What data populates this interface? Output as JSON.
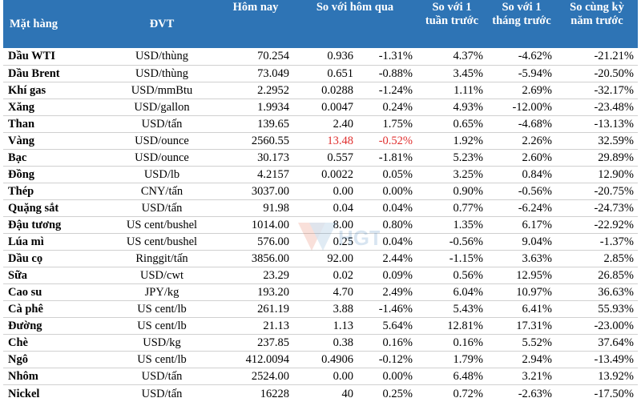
{
  "header": {
    "commodity": "Mặt hàng",
    "unit": "ĐVT",
    "today": "Hôm nay",
    "vs_yesterday": "So với hôm qua",
    "vs_week": "So với 1 tuần trước",
    "vs_month": "So với 1 tháng trước",
    "vs_year": "So cùng kỳ năm trước"
  },
  "colors": {
    "header_bg": "#2e74b5",
    "negative_highlight": "#e0302f"
  },
  "rows": [
    {
      "name": "Dầu WTI",
      "unit": "USD/thùng",
      "today": "70.254",
      "chg": "0.936",
      "chg_pct": "-1.31%",
      "week": "4.37%",
      "month": "-4.62%",
      "year": "-21.21%"
    },
    {
      "name": "Dầu Brent",
      "unit": "USD/thùng",
      "today": "73.049",
      "chg": "0.651",
      "chg_pct": "-0.88%",
      "week": "3.45%",
      "month": "-5.94%",
      "year": "-20.50%"
    },
    {
      "name": "Khí gas",
      "unit": "USD/mmBtu",
      "today": "2.2952",
      "chg": "0.0288",
      "chg_pct": "-1.24%",
      "week": "1.11%",
      "month": "2.69%",
      "year": "-32.17%"
    },
    {
      "name": "Xăng",
      "unit": "USD/gallon",
      "today": "1.9934",
      "chg": "0.0047",
      "chg_pct": "0.24%",
      "week": "4.93%",
      "month": "-12.00%",
      "year": "-23.48%"
    },
    {
      "name": "Than",
      "unit": "USD/tấn",
      "today": "139.65",
      "chg": "2.40",
      "chg_pct": "1.75%",
      "week": "0.65%",
      "month": "-4.68%",
      "year": "-13.13%"
    },
    {
      "name": "Vàng",
      "unit": "USD/ounce",
      "today": "2560.55",
      "chg": "13.48",
      "chg_pct": "-0.52%",
      "week": "1.92%",
      "month": "2.26%",
      "year": "32.59%"
    },
    {
      "name": "Bạc",
      "unit": "USD/ounce",
      "today": "30.173",
      "chg": "0.557",
      "chg_pct": "-1.81%",
      "week": "5.23%",
      "month": "2.60%",
      "year": "29.89%"
    },
    {
      "name": "Đồng",
      "unit": "USD/lb",
      "today": "4.2157",
      "chg": "0.0022",
      "chg_pct": "0.05%",
      "week": "3.25%",
      "month": "0.84%",
      "year": "12.90%"
    },
    {
      "name": "Thép",
      "unit": "CNY/tấn",
      "today": "3037.00",
      "chg": "0.00",
      "chg_pct": "0.00%",
      "week": "0.90%",
      "month": "-0.56%",
      "year": "-20.75%"
    },
    {
      "name": "Quặng sắt",
      "unit": "USD/tấn",
      "today": "91.98",
      "chg": "0.04",
      "chg_pct": "0.04%",
      "week": "0.77%",
      "month": "-6.24%",
      "year": "-24.73%"
    },
    {
      "name": "Đậu tương",
      "unit": "US cent/bushel",
      "today": "1014.00",
      "chg": "8.00",
      "chg_pct": "0.80%",
      "week": "1.35%",
      "month": "6.17%",
      "year": "-22.92%"
    },
    {
      "name": "Lúa mì",
      "unit": "US cent/bushel",
      "today": "576.00",
      "chg": "0.25",
      "chg_pct": "0.04%",
      "week": "-0.56%",
      "month": "9.04%",
      "year": "-1.37%"
    },
    {
      "name": "Dầu cọ",
      "unit": "Ringgit/tấn",
      "today": "3856.00",
      "chg": "92.00",
      "chg_pct": "2.44%",
      "week": "-1.15%",
      "month": "3.63%",
      "year": "2.85%"
    },
    {
      "name": "Sữa",
      "unit": "USD/cwt",
      "today": "23.29",
      "chg": "0.02",
      "chg_pct": "0.09%",
      "week": "0.56%",
      "month": "12.95%",
      "year": "26.85%"
    },
    {
      "name": "Cao su",
      "unit": "JPY/kg",
      "today": "193.20",
      "chg": "4.70",
      "chg_pct": "2.49%",
      "week": "6.04%",
      "month": "10.97%",
      "year": "36.63%"
    },
    {
      "name": "Cà phê",
      "unit": "US cent/lb",
      "today": "261.19",
      "chg": "3.88",
      "chg_pct": "-1.46%",
      "week": "5.43%",
      "month": "6.41%",
      "year": "55.93%"
    },
    {
      "name": "Đường",
      "unit": "US cent/lb",
      "today": "21.13",
      "chg": "1.13",
      "chg_pct": "5.64%",
      "week": "12.81%",
      "month": "17.31%",
      "year": "-23.00%"
    },
    {
      "name": "Chè",
      "unit": "USD/kg",
      "today": "237.85",
      "chg": "0.38",
      "chg_pct": "0.16%",
      "week": "0.16%",
      "month": "5.52%",
      "year": "37.64%"
    },
    {
      "name": "Ngô",
      "unit": "US cent/lb",
      "today": "412.0094",
      "chg": "0.4906",
      "chg_pct": "-0.12%",
      "week": "1.79%",
      "month": "2.94%",
      "year": "-13.49%"
    },
    {
      "name": "Nhôm",
      "unit": "USD/tấn",
      "today": "2524.00",
      "chg": "0.00",
      "chg_pct": "0.00%",
      "week": "6.48%",
      "month": "3.21%",
      "year": "13.92%"
    },
    {
      "name": "Nickel",
      "unit": "USD/tấn",
      "today": "16228",
      "chg": "40",
      "chg_pct": "0.25%",
      "week": "0.72%",
      "month": "-2.63%",
      "year": "-17.50%"
    }
  ],
  "highlight_row_index": 5,
  "watermark": "HGT"
}
